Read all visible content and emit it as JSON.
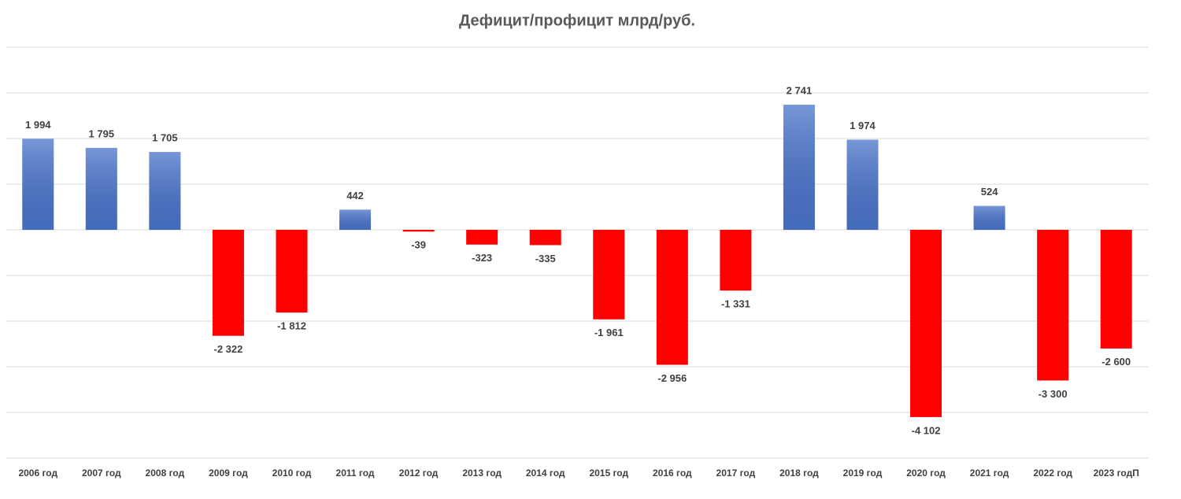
{
  "chart_data": {
    "type": "bar",
    "title": "Дефицит/профицит млрд/руб.",
    "categories": [
      "2006 год",
      "2007 год",
      "2008 год",
      "2009 год",
      "2010 год",
      "2011 год",
      "2012 год",
      "2013 год",
      "2014 год",
      "2015 год",
      "2016 год",
      "2017 год",
      "2018 год",
      "2019 год",
      "2020 год",
      "2021 год",
      "2022 год",
      "2023 годП"
    ],
    "values": [
      1994,
      1795,
      1705,
      -2322,
      -1812,
      442,
      -39,
      -323,
      -335,
      -1961,
      -2956,
      -1331,
      2741,
      1974,
      -4102,
      524,
      -3300,
      -2600
    ],
    "value_labels": [
      "1 994",
      "1 795",
      "1 705",
      "-2 322",
      "-1 812",
      "442",
      "-39",
      "-323",
      "-335",
      "-1 961",
      "-2 956",
      "-1 331",
      "2 741",
      "1 974",
      "-4 102",
      "524",
      "-3 300",
      "-2 600"
    ],
    "color_positive": "#4a74cc",
    "color_negative": "#ff0000",
    "ylim": [
      -5000,
      4000
    ],
    "yticks": [
      -5000,
      -4000,
      -3000,
      -2000,
      -1000,
      0,
      1000,
      2000,
      3000,
      4000
    ],
    "grid": true
  }
}
